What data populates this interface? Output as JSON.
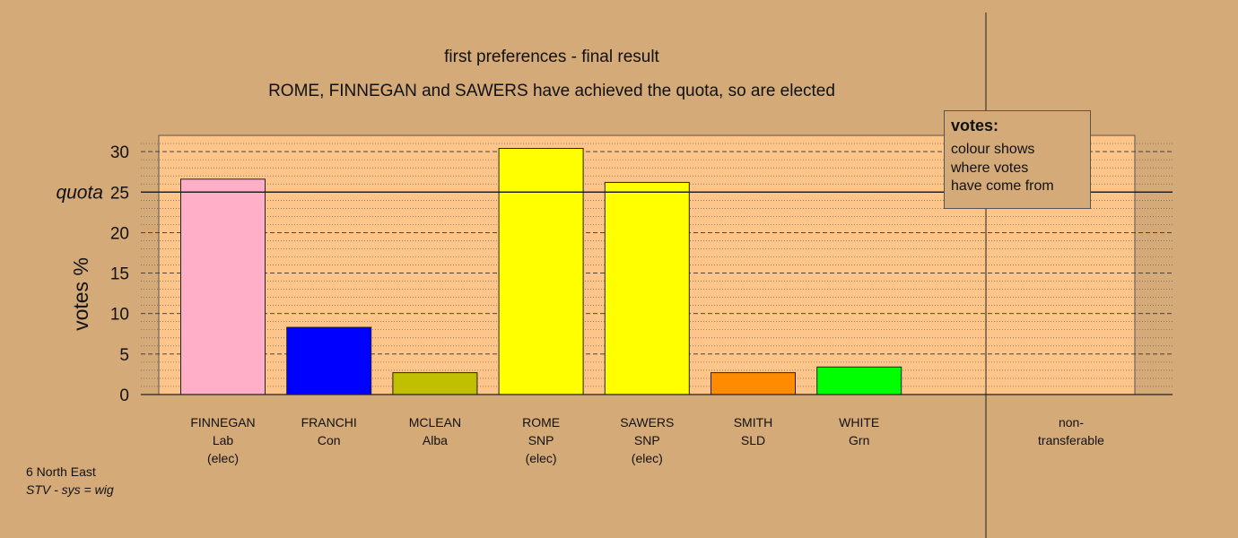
{
  "chart_data": {
    "type": "bar",
    "title": "first preferences - final result",
    "subtitle": "ROME, FINNEGAN and SAWERS have achieved the quota, so are elected",
    "ylabel": "votes %",
    "ylim": [
      0,
      32
    ],
    "yticks": [
      0,
      5,
      10,
      15,
      20,
      25,
      30
    ],
    "quota": 25,
    "quota_label": "quota",
    "grid": "dashed horizontal",
    "categories": [
      {
        "name": "FINNEGAN",
        "party": "Lab",
        "status": "(elec)",
        "value": 26.6,
        "color": "#ffb0c8"
      },
      {
        "name": "FRANCHI",
        "party": "Con",
        "status": "",
        "value": 8.3,
        "color": "#0000ff"
      },
      {
        "name": "MCLEAN",
        "party": "Alba",
        "status": "",
        "value": 2.7,
        "color": "#c0c000"
      },
      {
        "name": "ROME",
        "party": "SNP",
        "status": "(elec)",
        "value": 30.4,
        "color": "#ffff00"
      },
      {
        "name": "SAWERS",
        "party": "SNP",
        "status": "(elec)",
        "value": 26.2,
        "color": "#ffff00"
      },
      {
        "name": "SMITH",
        "party": "SLD",
        "status": "",
        "value": 2.7,
        "color": "#ff8c00"
      },
      {
        "name": "WHITE",
        "party": "Grn",
        "status": "",
        "value": 3.4,
        "color": "#00ff00"
      }
    ],
    "nontransferable": {
      "line1": "non-",
      "line2": "transferable",
      "value": 0
    },
    "legend": {
      "title": "votes:",
      "lines": [
        "colour shows",
        "where votes",
        "have come from"
      ],
      "placement": "top-right"
    }
  },
  "footer": {
    "region": "6 North East",
    "system": "STV - sys = wig"
  },
  "colors": {
    "background": "#d4aa78",
    "plot_area": "#fdc58a"
  }
}
